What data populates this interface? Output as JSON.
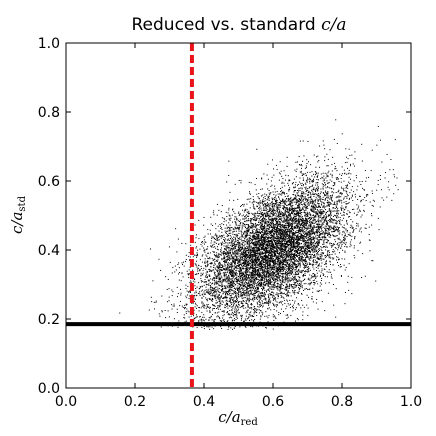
{
  "chart_data": {
    "type": "scatter",
    "title": {
      "prefix": "Reduced vs. standard ",
      "math": "c/a"
    },
    "xlabel": {
      "main": "c/a",
      "sub": "red"
    },
    "ylabel": {
      "main": "c/a",
      "sub": "std"
    },
    "xlim": [
      0.0,
      1.0
    ],
    "ylim": [
      0.0,
      1.0
    ],
    "xticks": [
      "0.0",
      "0.2",
      "0.4",
      "0.6",
      "0.8",
      "1.0"
    ],
    "yticks": [
      "0.0",
      "0.2",
      "0.4",
      "0.6",
      "0.8",
      "1.0"
    ],
    "grid": false,
    "point_color": "#000000",
    "distribution": {
      "n": 9000,
      "x_mean": 0.6,
      "x_sd": 0.11,
      "y_mean": 0.4,
      "y_sd": 0.1,
      "correlation": 0.55,
      "x_range": [
        0.13,
        0.97
      ],
      "y_range": [
        0.06,
        0.84
      ],
      "y_min_cut": 0.17
    },
    "hline": {
      "y": 0.185,
      "color": "#000000",
      "style": "solid"
    },
    "vline": {
      "x": 0.365,
      "color": "#e8141a",
      "style": "dashed"
    }
  }
}
